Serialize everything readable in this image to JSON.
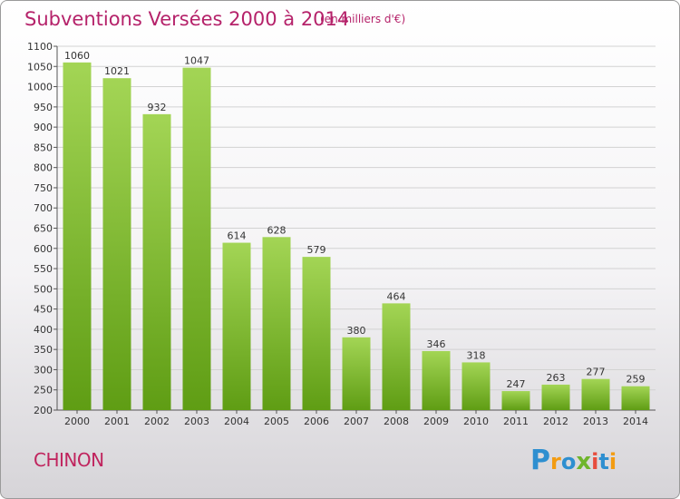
{
  "title": "Subventions Versées 2000 à 2014",
  "subtitle": "(en milliers d'€)",
  "commune": "CHINON",
  "logo_text": "Proxiti",
  "colors": {
    "title": "#b5226a",
    "bar_top": "#a0d350",
    "bar_bottom": "#62a016",
    "grid": "#d2d2d2"
  },
  "chart_data": {
    "type": "bar",
    "categories": [
      "2000",
      "2001",
      "2002",
      "2003",
      "2004",
      "2005",
      "2006",
      "2007",
      "2008",
      "2009",
      "2010",
      "2011",
      "2012",
      "2013",
      "2014"
    ],
    "values": [
      1060,
      1021,
      932,
      1047,
      614,
      628,
      579,
      380,
      464,
      346,
      318,
      247,
      263,
      277,
      259
    ],
    "ylim": [
      200,
      1100
    ],
    "yticks": [
      200,
      250,
      300,
      350,
      400,
      450,
      500,
      550,
      600,
      650,
      700,
      750,
      800,
      850,
      900,
      950,
      1000,
      1050,
      1100
    ],
    "grid": true,
    "title": "Subventions Versées 2000 à 2014",
    "xlabel": "",
    "ylabel": ""
  }
}
